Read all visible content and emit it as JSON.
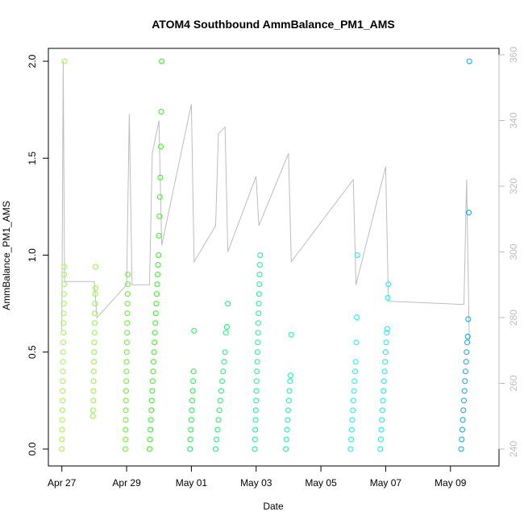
{
  "chart_data": {
    "type": "scatter",
    "title": "ATOM4 Southbound AmmBalance_PM1_AMS",
    "xlabel": "Date",
    "ylabel": "AmmBalance_PM1_AMS",
    "ylim": [
      0,
      2
    ],
    "y2lim": [
      240,
      360
    ],
    "grid": false,
    "x_tick_labels": [
      "Apr 27",
      "Apr 29",
      "May 01",
      "May 03",
      "May 05",
      "May 07",
      "May 09"
    ],
    "x_ticks_days": [
      "2016-04-27",
      "2016-04-29",
      "2016-05-01",
      "2016-05-03",
      "2016-05-05",
      "2016-05-07",
      "2016-05-09"
    ],
    "y_ticks": [
      0.0,
      0.5,
      1.0,
      1.5,
      2.0
    ],
    "y_tick_labels": [
      "0.0",
      "0.5",
      "1.0",
      "1.5",
      "2.0"
    ],
    "y2_ticks": [
      240,
      260,
      280,
      300,
      320,
      340,
      360
    ],
    "y2_tick_labels": [
      "240",
      "260",
      "280",
      "300",
      "320",
      "340",
      "360"
    ],
    "scatter_clusters": [
      {
        "start": "2016-04-27 00:00",
        "end": "2016-04-27 02:00",
        "color": "#9CFF3C",
        "points": [
          0.0,
          0.05,
          0.1,
          0.15,
          0.2,
          0.25,
          0.3,
          0.35,
          0.4,
          0.45,
          0.5,
          0.55,
          0.6,
          0.65,
          0.7,
          0.75,
          0.8,
          0.85,
          0.9,
          0.94,
          2.0
        ]
      },
      {
        "start": "2016-04-27 23:00",
        "end": "2016-04-28 01:00",
        "color": "#8CFF2E",
        "points": [
          0.17,
          0.2,
          0.25,
          0.3,
          0.35,
          0.4,
          0.45,
          0.5,
          0.55,
          0.6,
          0.65,
          0.7,
          0.75,
          0.8,
          0.83,
          0.94
        ]
      },
      {
        "start": "2016-04-28 23:00",
        "end": "2016-04-29 01:00",
        "color": "#55FF14",
        "points": [
          0.0,
          0.05,
          0.1,
          0.15,
          0.2,
          0.25,
          0.3,
          0.35,
          0.4,
          0.45,
          0.5,
          0.55,
          0.6,
          0.65,
          0.7,
          0.75,
          0.8,
          0.85,
          0.9
        ]
      },
      {
        "start": "2016-04-29 17:00",
        "end": "2016-04-30 02:00",
        "color": "#22FF0A",
        "points": [
          0.0,
          0.05,
          0.1,
          0.15,
          0.2,
          0.25,
          0.3,
          0.35,
          0.4,
          0.45,
          0.5,
          0.55,
          0.6,
          0.65,
          0.7,
          0.75,
          0.8,
          0.85,
          0.9,
          0.95,
          1.0,
          1.1,
          1.2,
          1.3,
          1.4,
          1.56,
          1.74,
          2.0
        ]
      },
      {
        "start": "2016-04-30 23:00",
        "end": "2016-05-01 02:00",
        "color": "#0DFF36",
        "points": [
          0.0,
          0.05,
          0.1,
          0.15,
          0.2,
          0.25,
          0.3,
          0.35,
          0.4,
          0.61
        ]
      },
      {
        "start": "2016-05-01 18:00",
        "end": "2016-05-02 03:00",
        "color": "#06FF66",
        "points": [
          0.0,
          0.05,
          0.1,
          0.15,
          0.2,
          0.25,
          0.3,
          0.35,
          0.4,
          0.45,
          0.5,
          0.6,
          0.63,
          0.75
        ]
      },
      {
        "start": "2016-05-02 23:00",
        "end": "2016-05-03 03:00",
        "color": "#00FF96",
        "points": [
          0.0,
          0.05,
          0.1,
          0.15,
          0.2,
          0.25,
          0.3,
          0.35,
          0.4,
          0.45,
          0.5,
          0.55,
          0.6,
          0.65,
          0.7,
          0.75,
          0.8,
          0.85,
          0.9,
          0.95,
          1.0
        ]
      },
      {
        "start": "2016-05-03 22:00",
        "end": "2016-05-04 02:00",
        "color": "#00FFAA",
        "points": [
          0.0,
          0.05,
          0.1,
          0.15,
          0.2,
          0.25,
          0.3,
          0.35,
          0.38,
          0.59
        ]
      },
      {
        "start": "2016-05-05 22:00",
        "end": "2016-05-06 03:00",
        "color": "#00FFEE",
        "points": [
          0.0,
          0.05,
          0.1,
          0.15,
          0.2,
          0.25,
          0.3,
          0.35,
          0.4,
          0.45,
          0.55,
          0.68,
          1.0
        ]
      },
      {
        "start": "2016-05-06 20:00",
        "end": "2016-05-07 02:00",
        "color": "#00F2FF",
        "points": [
          0.0,
          0.05,
          0.1,
          0.15,
          0.2,
          0.25,
          0.3,
          0.35,
          0.4,
          0.45,
          0.5,
          0.55,
          0.6,
          0.62,
          0.78,
          0.85
        ]
      },
      {
        "start": "2016-05-09 08:00",
        "end": "2016-05-09 14:00",
        "color": "#00A8FF",
        "points": [
          0.0,
          0.05,
          0.1,
          0.15,
          0.2,
          0.25,
          0.3,
          0.35,
          0.4,
          0.45,
          0.5,
          0.55,
          0.58,
          0.67,
          1.22,
          2.0
        ]
      }
    ],
    "line_series": {
      "color": "#bdbdbd",
      "axis": "right",
      "points": [
        {
          "x": "2016-04-27 00:00",
          "y": 276
        },
        {
          "x": "2016-04-27 01:00",
          "y": 358
        },
        {
          "x": "2016-04-27 02:00",
          "y": 291
        },
        {
          "x": "2016-04-28 00:00",
          "y": 291
        },
        {
          "x": "2016-04-28 02:00",
          "y": 280
        },
        {
          "x": "2016-04-29 00:00",
          "y": 290
        },
        {
          "x": "2016-04-29 02:00",
          "y": 342
        },
        {
          "x": "2016-04-29 04:00",
          "y": 290
        },
        {
          "x": "2016-04-29 17:00",
          "y": 290
        },
        {
          "x": "2016-04-29 19:00",
          "y": 330
        },
        {
          "x": "2016-04-30 00:00",
          "y": 340
        },
        {
          "x": "2016-04-30 02:00",
          "y": 302
        },
        {
          "x": "2016-05-01 00:00",
          "y": 345
        },
        {
          "x": "2016-05-01 02:00",
          "y": 297
        },
        {
          "x": "2016-05-01 18:00",
          "y": 308
        },
        {
          "x": "2016-05-01 20:00",
          "y": 336
        },
        {
          "x": "2016-05-02 01:00",
          "y": 338
        },
        {
          "x": "2016-05-02 03:00",
          "y": 300
        },
        {
          "x": "2016-05-03 00:00",
          "y": 323
        },
        {
          "x": "2016-05-03 02:00",
          "y": 308
        },
        {
          "x": "2016-05-04 00:00",
          "y": 330
        },
        {
          "x": "2016-05-04 02:00",
          "y": 297
        },
        {
          "x": "2016-05-06 00:00",
          "y": 322
        },
        {
          "x": "2016-05-06 02:00",
          "y": 290
        },
        {
          "x": "2016-05-07 00:00",
          "y": 326
        },
        {
          "x": "2016-05-07 02:00",
          "y": 285
        },
        {
          "x": "2016-05-09 10:00",
          "y": 284
        },
        {
          "x": "2016-05-09 12:00",
          "y": 322
        },
        {
          "x": "2016-05-09 14:00",
          "y": 272
        }
      ]
    }
  }
}
